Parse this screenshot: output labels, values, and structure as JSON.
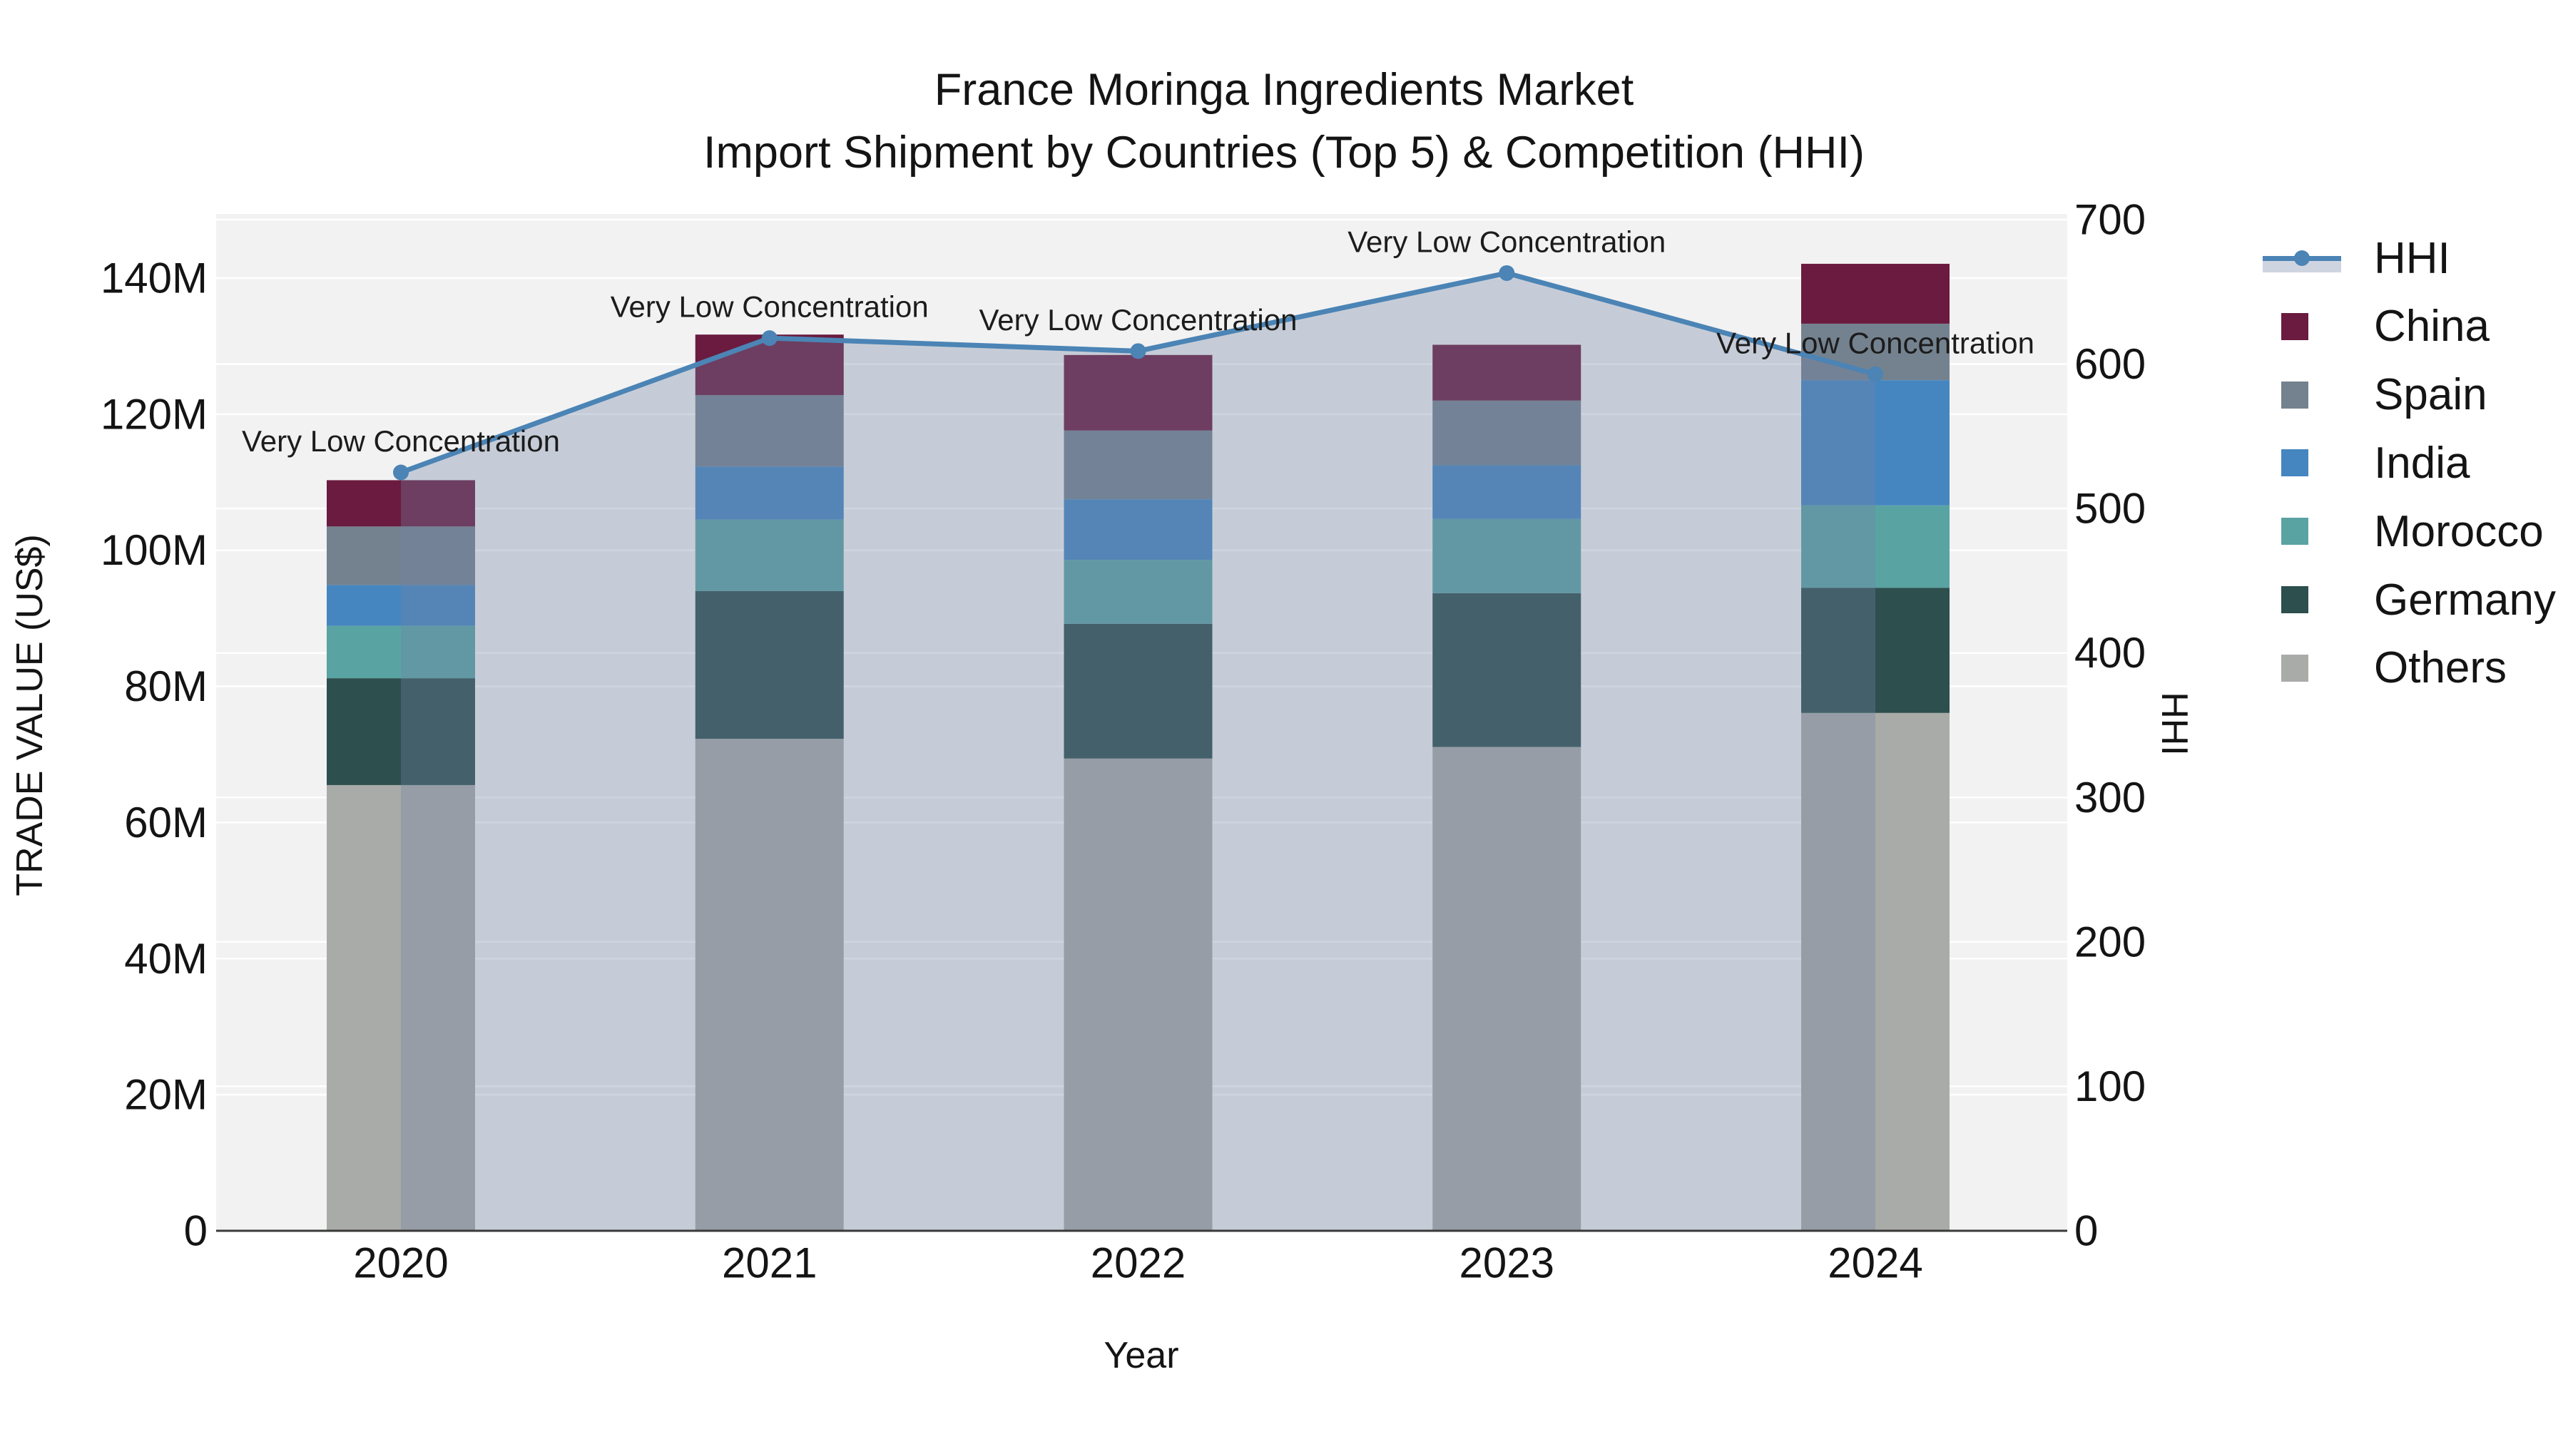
{
  "title": {
    "line1": "France Moringa Ingredients Market",
    "line2": "Import Shipment by Countries (Top 5) & Competition (HHI)"
  },
  "axes": {
    "x_title": "Year",
    "y_left_title": "TRADE VALUE (US$)",
    "y_right_title": "HHI",
    "y_left_tick_labels": [
      "0",
      "20M",
      "40M",
      "60M",
      "80M",
      "100M",
      "120M",
      "140M"
    ],
    "y_right_tick_labels": [
      "0",
      "100",
      "200",
      "300",
      "400",
      "500",
      "600",
      "700"
    ]
  },
  "colors": {
    "figure_bg": "#FFFFFF",
    "plot_bg": "#F2F2F2",
    "grid": "#FFFFFF",
    "axis_line": "#3A3A3A",
    "text": "#141414",
    "hhi_line": "#4B84B5",
    "hhi_area_fill": "rgba(113,132,165,0.34)"
  },
  "legend": {
    "items": [
      {
        "label": "HHI",
        "type": "line",
        "color": "#4B84B5"
      },
      {
        "label": "China",
        "type": "swatch",
        "color": "#6B1B3F"
      },
      {
        "label": "Spain",
        "type": "swatch",
        "color": "#74828F"
      },
      {
        "label": "India",
        "type": "swatch",
        "color": "#4586C0"
      },
      {
        "label": "Morocco",
        "type": "swatch",
        "color": "#5AA3A3"
      },
      {
        "label": "Germany",
        "type": "swatch",
        "color": "#2D4F4E"
      },
      {
        "label": "Others",
        "type": "swatch",
        "color": "#A9ABA8"
      }
    ]
  },
  "chart_data": {
    "type": "bar",
    "subtype": "stacked-bar-with-line-overlay",
    "title": "France Moringa Ingredients Market",
    "subtitle": "Import Shipment by Countries (Top 5) & Competition (HHI)",
    "xlabel": "Year",
    "ylabel": "TRADE VALUE (US$)",
    "ylabel2": "HHI",
    "categories": [
      "2020",
      "2021",
      "2022",
      "2023",
      "2024"
    ],
    "series": [
      {
        "name": "China",
        "color": "#6B1B3F",
        "values": [
          6.8,
          8.9,
          11.1,
          8.2,
          8.8
        ],
        "unit": "M US$"
      },
      {
        "name": "Spain",
        "color": "#74828F",
        "values": [
          8.6,
          10.5,
          10.1,
          9.5,
          8.3
        ],
        "unit": "M US$"
      },
      {
        "name": "India",
        "color": "#4586C0",
        "values": [
          6.0,
          7.8,
          8.9,
          7.9,
          18.4
        ],
        "unit": "M US$"
      },
      {
        "name": "Morocco",
        "color": "#5AA3A3",
        "values": [
          7.7,
          10.5,
          9.4,
          10.9,
          12.1
        ],
        "unit": "M US$"
      },
      {
        "name": "Germany",
        "color": "#2D4F4E",
        "values": [
          15.7,
          21.7,
          19.8,
          22.6,
          18.4
        ],
        "unit": "M US$"
      },
      {
        "name": "Others",
        "color": "#A9ABA8",
        "values": [
          65.5,
          72.3,
          69.4,
          71.1,
          76.1
        ],
        "unit": "M US$"
      }
    ],
    "stack_order_bottom_to_top": [
      "Others",
      "Germany",
      "Morocco",
      "India",
      "Spain",
      "China"
    ],
    "stack_totals": [
      110.3,
      131.7,
      128.7,
      130.2,
      142.1
    ],
    "line_series": {
      "name": "HHI",
      "axis": "right",
      "color": "#4B84B5",
      "area_fill": "rgba(113,132,165,0.34)",
      "values": [
        525,
        618,
        609,
        663,
        593
      ]
    },
    "annotations": [
      {
        "x": "2020",
        "text": "Very Low Concentration"
      },
      {
        "x": "2021",
        "text": "Very Low Concentration"
      },
      {
        "x": "2022",
        "text": "Very Low Concentration"
      },
      {
        "x": "2023",
        "text": "Very Low Concentration"
      },
      {
        "x": "2024",
        "text": "Very Low Concentration"
      }
    ],
    "y_left": {
      "ticks": [
        0,
        20,
        40,
        60,
        80,
        100,
        120,
        140
      ],
      "unit": "M",
      "range": [
        0,
        149.4
      ],
      "grid": true
    },
    "y_right": {
      "ticks": [
        0,
        100,
        200,
        300,
        400,
        500,
        600,
        700
      ],
      "range": [
        0,
        700
      ],
      "grid": true
    },
    "legend_position": "right"
  }
}
